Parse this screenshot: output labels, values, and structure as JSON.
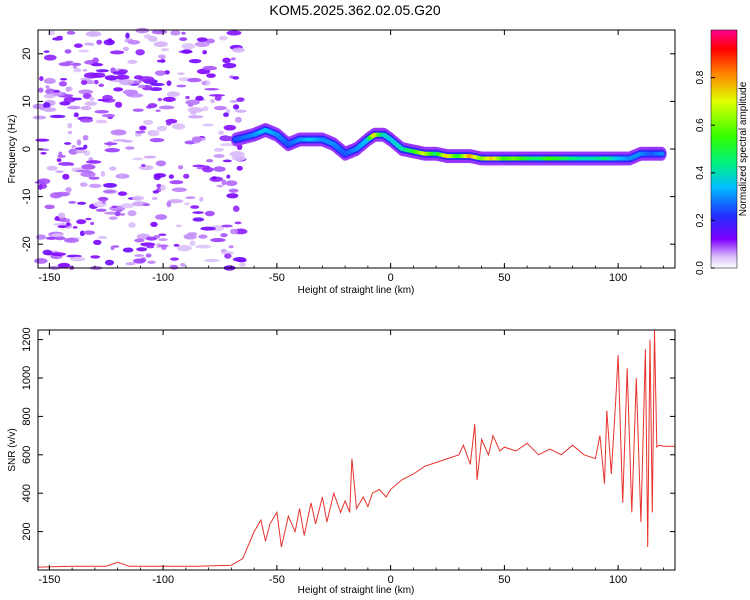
{
  "figure": {
    "title": "KOM5.2025.362.02.05.G20"
  },
  "colors": {
    "snr_line": "#e8322e",
    "axis": "#000000",
    "background": "#ffffff"
  },
  "chart_data": [
    {
      "type": "heatmap",
      "xlabel": "Height of straight line (km)",
      "ylabel": "Frequency (Hz)",
      "xlim": [
        -155,
        125
      ],
      "ylim": [
        -25,
        25
      ],
      "x_ticks": [
        -150,
        -100,
        -50,
        0,
        50,
        100
      ],
      "x_tick_labels": [
        "-150",
        "-100",
        "-50",
        "0",
        "50",
        "100"
      ],
      "y_ticks": [
        -20,
        -10,
        0,
        10,
        20
      ],
      "y_tick_labels": [
        "-20",
        "-10",
        "0",
        "10",
        "20"
      ],
      "colorbar": {
        "label": "Normalized spectral amplitude",
        "range": [
          0,
          1
        ],
        "ticks": [
          0.0,
          0.2,
          0.4,
          0.6,
          0.8
        ],
        "tick_labels": [
          "0.0",
          "0.2",
          "0.4",
          "0.6",
          "0.8"
        ],
        "colormap": "rainbow"
      },
      "ridge": {
        "description_points": [
          {
            "x": -68,
            "y": 2,
            "amp": 0.25
          },
          {
            "x": -60,
            "y": 3,
            "amp": 0.3
          },
          {
            "x": -55,
            "y": 4,
            "amp": 0.35
          },
          {
            "x": -50,
            "y": 3,
            "amp": 0.3
          },
          {
            "x": -45,
            "y": 1,
            "amp": 0.25
          },
          {
            "x": -40,
            "y": 2,
            "amp": 0.3
          },
          {
            "x": -35,
            "y": 2,
            "amp": 0.35
          },
          {
            "x": -30,
            "y": 2,
            "amp": 0.3
          },
          {
            "x": -25,
            "y": 1,
            "amp": 0.3
          },
          {
            "x": -20,
            "y": -1,
            "amp": 0.25
          },
          {
            "x": -15,
            "y": 0,
            "amp": 0.3
          },
          {
            "x": -10,
            "y": 2,
            "amp": 0.35
          },
          {
            "x": -7,
            "y": 3,
            "amp": 0.75
          },
          {
            "x": -3,
            "y": 3,
            "amp": 0.4
          },
          {
            "x": 0,
            "y": 2,
            "amp": 0.35
          },
          {
            "x": 5,
            "y": 0,
            "amp": 0.4
          },
          {
            "x": 10,
            "y": -0.5,
            "amp": 0.5
          },
          {
            "x": 15,
            "y": -1,
            "amp": 0.7
          },
          {
            "x": 20,
            "y": -1,
            "amp": 0.45
          },
          {
            "x": 25,
            "y": -1.5,
            "amp": 0.75
          },
          {
            "x": 30,
            "y": -1.5,
            "amp": 0.5
          },
          {
            "x": 35,
            "y": -1.5,
            "amp": 0.8
          },
          {
            "x": 40,
            "y": -2,
            "amp": 0.6
          },
          {
            "x": 45,
            "y": -2,
            "amp": 0.75
          },
          {
            "x": 50,
            "y": -2,
            "amp": 0.55
          },
          {
            "x": 55,
            "y": -2,
            "amp": 0.6
          },
          {
            "x": 60,
            "y": -2,
            "amp": 0.5
          },
          {
            "x": 65,
            "y": -2,
            "amp": 0.45
          },
          {
            "x": 70,
            "y": -2,
            "amp": 0.55
          },
          {
            "x": 75,
            "y": -2,
            "amp": 0.5
          },
          {
            "x": 80,
            "y": -2,
            "amp": 0.45
          },
          {
            "x": 85,
            "y": -2,
            "amp": 0.4
          },
          {
            "x": 90,
            "y": -2,
            "amp": 0.4
          },
          {
            "x": 95,
            "y": -2,
            "amp": 0.45
          },
          {
            "x": 100,
            "y": -2,
            "amp": 0.35
          },
          {
            "x": 105,
            "y": -2,
            "amp": 0.3
          },
          {
            "x": 110,
            "y": -1,
            "amp": 0.3
          },
          {
            "x": 115,
            "y": -1,
            "amp": 0.25
          },
          {
            "x": 120,
            "y": -1,
            "amp": 0.3
          }
        ]
      }
    },
    {
      "type": "line",
      "xlabel": "Height of straight line (km)",
      "ylabel": "SNR (v/v)",
      "xlim": [
        -155,
        125
      ],
      "ylim": [
        0,
        1250
      ],
      "x_ticks": [
        -150,
        -100,
        -50,
        0,
        50,
        100
      ],
      "x_tick_labels": [
        "-150",
        "-100",
        "-50",
        "0",
        "50",
        "100"
      ],
      "y_ticks": [
        200,
        400,
        600,
        800,
        1000,
        1200
      ],
      "y_tick_labels": [
        "200",
        "400",
        "600",
        "800",
        "1000",
        "1200"
      ],
      "series": [
        {
          "x": [
            -155,
            -140,
            -125,
            -120,
            -115,
            -100,
            -85,
            -70,
            -65,
            -60,
            -57,
            -55,
            -53,
            -50,
            -48,
            -45,
            -42,
            -40,
            -38,
            -35,
            -33,
            -30,
            -28,
            -25,
            -22,
            -20,
            -18,
            -17,
            -15,
            -12,
            -10,
            -8,
            -5,
            -2,
            0,
            5,
            10,
            15,
            20,
            25,
            30,
            32,
            35,
            37,
            38,
            40,
            43,
            45,
            48,
            50,
            55,
            60,
            65,
            70,
            75,
            80,
            85,
            90,
            92,
            94,
            95,
            97,
            99,
            100,
            102,
            104,
            106,
            108,
            110,
            112,
            113,
            114,
            115,
            116,
            117,
            118,
            120,
            125
          ],
          "y": [
            15,
            20,
            20,
            40,
            20,
            20,
            20,
            25,
            60,
            200,
            260,
            150,
            240,
            300,
            120,
            280,
            200,
            320,
            180,
            350,
            240,
            380,
            250,
            400,
            300,
            360,
            300,
            580,
            320,
            380,
            330,
            400,
            420,
            380,
            420,
            470,
            500,
            540,
            560,
            580,
            600,
            650,
            550,
            760,
            470,
            680,
            600,
            700,
            620,
            640,
            620,
            660,
            600,
            630,
            600,
            650,
            600,
            580,
            700,
            450,
            830,
            500,
            900,
            1120,
            350,
            1050,
            300,
            1000,
            250,
            1150,
            120,
            1200,
            300,
            1250,
            640,
            650,
            645,
            645
          ]
        }
      ]
    }
  ]
}
